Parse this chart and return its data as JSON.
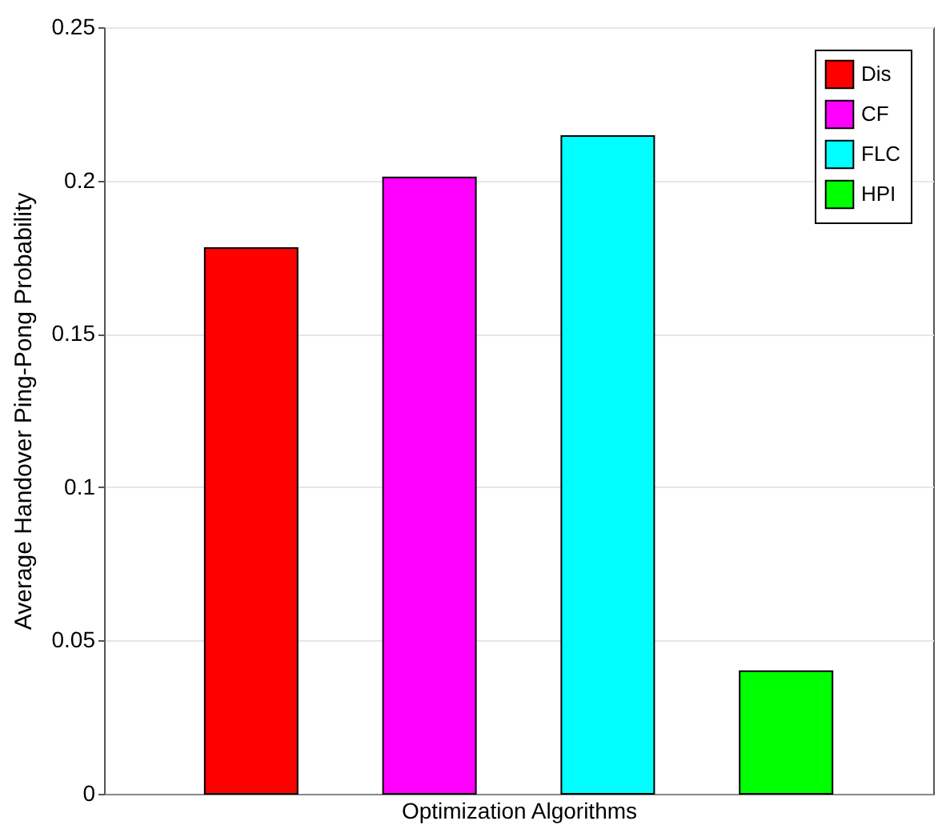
{
  "chart_data": {
    "type": "bar",
    "xlabel": "Optimization Algorithms",
    "ylabel": "Average Handover Ping-Pong Probability",
    "categories": [
      null
    ],
    "series": [
      {
        "name": "Dis",
        "color": "#ff0000",
        "values": [
          0.178
        ]
      },
      {
        "name": "CF",
        "color": "#ff00ff",
        "values": [
          0.201
        ]
      },
      {
        "name": "FLC",
        "color": "#00ffff",
        "values": [
          0.2145
        ]
      },
      {
        "name": "HPI",
        "color": "#00ff00",
        "values": [
          0.04
        ]
      }
    ],
    "ylim": [
      0,
      0.25
    ],
    "yticks": [
      0,
      0.05,
      0.1,
      0.15,
      0.2,
      0.25
    ],
    "grid": "y",
    "legend": "top right",
    "tick_labels": "y"
  }
}
